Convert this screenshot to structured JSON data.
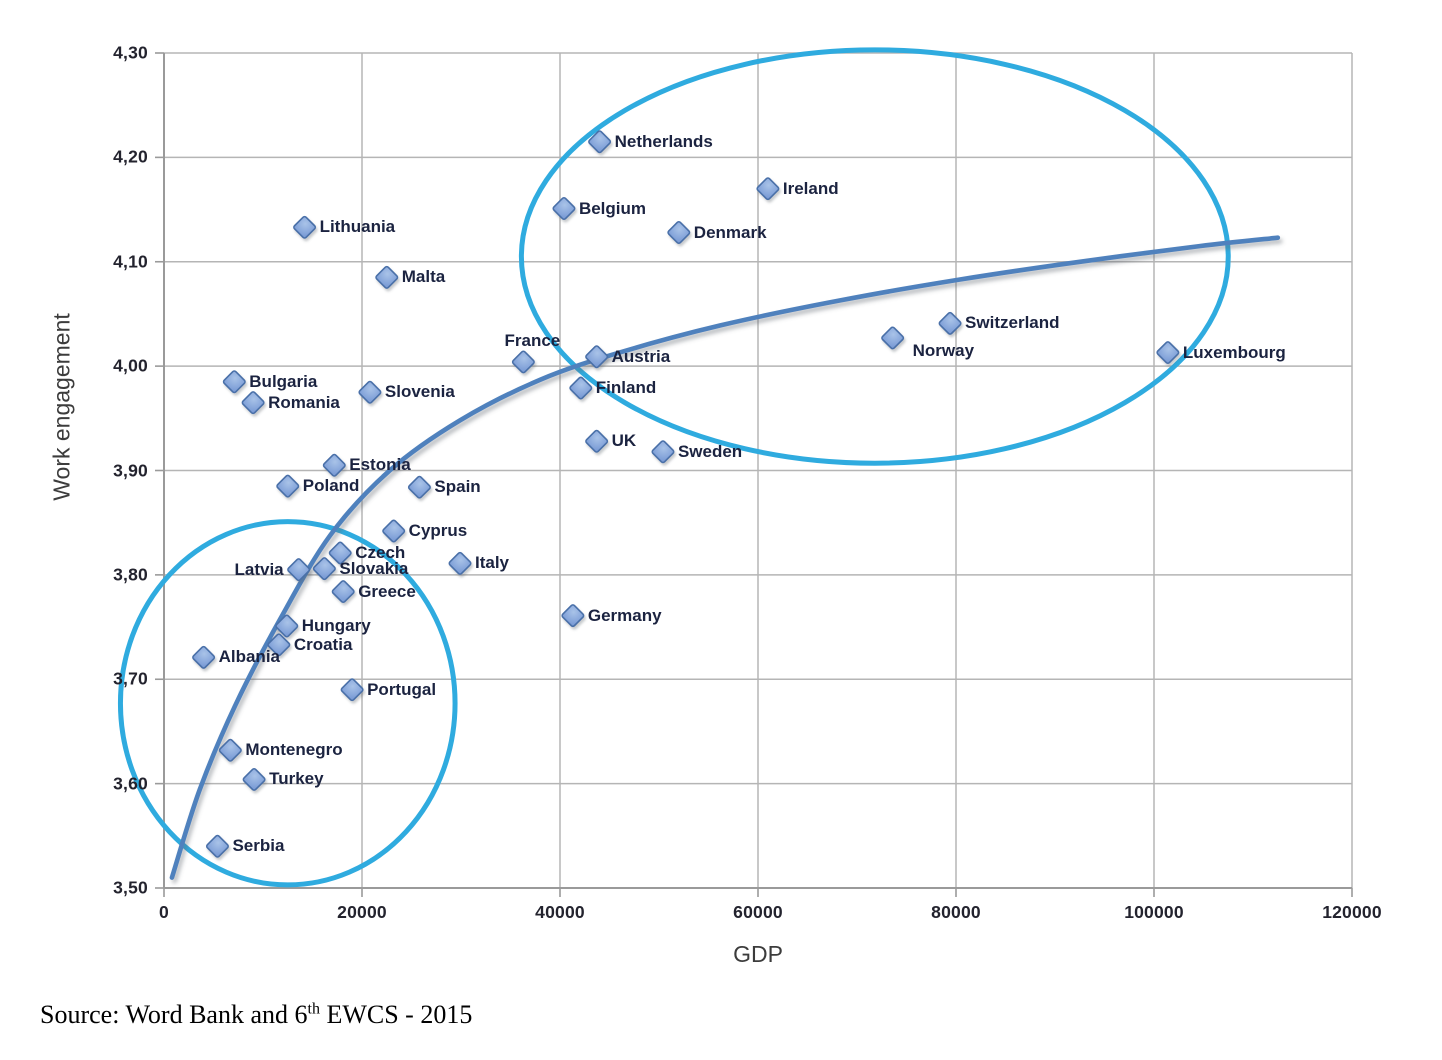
{
  "colors": {
    "marker_fill": "#7b9cd6",
    "marker_fill_light": "#a9c3e8",
    "marker_border": "#4a6fa8",
    "trend_line": "#4f81bd",
    "ellipse_stroke": "#2fabdf",
    "gridline": "#b5b5b5",
    "axis_line": "#9a9a9a",
    "point_label_text": "#1b2340",
    "tick_text": "#23232e"
  },
  "chart_data": {
    "type": "scatter",
    "title": "",
    "xlabel": "GDP",
    "ylabel": "Work engagement",
    "xlim": [
      0,
      120000
    ],
    "ylim": [
      3.5,
      4.3
    ],
    "grid": true,
    "legend": false,
    "x_ticks": {
      "values": [
        0,
        20000,
        40000,
        60000,
        80000,
        100000,
        120000
      ],
      "labels": [
        "0",
        "20000",
        "40000",
        "60000",
        "80000",
        "100000",
        "120000"
      ]
    },
    "y_ticks": {
      "values": [
        3.5,
        3.6,
        3.7,
        3.8,
        3.9,
        4.0,
        4.1,
        4.2,
        4.3
      ],
      "labels": [
        "3,50",
        "3,60",
        "3,70",
        "3,80",
        "3,90",
        "4,00",
        "4,10",
        "4,20",
        "4,30"
      ]
    },
    "points": [
      {
        "label": "Netherlands",
        "gdp": 44000,
        "engagement": 4.215,
        "label_side": "right"
      },
      {
        "label": "Ireland",
        "gdp": 61000,
        "engagement": 4.17,
        "label_side": "right"
      },
      {
        "label": "Belgium",
        "gdp": 40400,
        "engagement": 4.151,
        "label_side": "right"
      },
      {
        "label": "Denmark",
        "gdp": 52000,
        "engagement": 4.128,
        "label_side": "right"
      },
      {
        "label": "Lithuania",
        "gdp": 14200,
        "engagement": 4.133,
        "label_side": "right"
      },
      {
        "label": "Malta",
        "gdp": 22500,
        "engagement": 4.085,
        "label_side": "right"
      },
      {
        "label": "France",
        "gdp": 36300,
        "engagement": 4.004,
        "label_side": "above"
      },
      {
        "label": "Austria",
        "gdp": 43700,
        "engagement": 4.009,
        "label_side": "right"
      },
      {
        "label": "Finland",
        "gdp": 42100,
        "engagement": 3.979,
        "label_side": "right"
      },
      {
        "label": "UK",
        "gdp": 43700,
        "engagement": 3.928,
        "label_side": "right"
      },
      {
        "label": "Sweden",
        "gdp": 50400,
        "engagement": 3.918,
        "label_side": "right"
      },
      {
        "label": "Norway",
        "gdp": 73600,
        "engagement": 4.027,
        "label_side": "below-right"
      },
      {
        "label": "Switzerland",
        "gdp": 79400,
        "engagement": 4.041,
        "label_side": "right"
      },
      {
        "label": "Luxembourg",
        "gdp": 101400,
        "engagement": 4.013,
        "label_side": "right"
      },
      {
        "label": "Germany",
        "gdp": 41300,
        "engagement": 3.761,
        "label_side": "right"
      },
      {
        "label": "Italy",
        "gdp": 29900,
        "engagement": 3.811,
        "label_side": "right"
      },
      {
        "label": "Spain",
        "gdp": 25800,
        "engagement": 3.884,
        "label_side": "right"
      },
      {
        "label": "Cyprus",
        "gdp": 23200,
        "engagement": 3.842,
        "label_side": "right"
      },
      {
        "label": "Slovenia",
        "gdp": 20800,
        "engagement": 3.975,
        "label_side": "right"
      },
      {
        "label": "Estonia",
        "gdp": 17200,
        "engagement": 3.905,
        "label_side": "right"
      },
      {
        "label": "Czech",
        "gdp": 17800,
        "engagement": 3.821,
        "label_side": "right"
      },
      {
        "label": "Slovakia",
        "gdp": 16200,
        "engagement": 3.806,
        "label_side": "right"
      },
      {
        "label": "Latvia",
        "gdp": 13600,
        "engagement": 3.805,
        "label_side": "left"
      },
      {
        "label": "Greece",
        "gdp": 18100,
        "engagement": 3.784,
        "label_side": "right"
      },
      {
        "label": "Poland",
        "gdp": 12500,
        "engagement": 3.885,
        "label_side": "right"
      },
      {
        "label": "Hungary",
        "gdp": 12400,
        "engagement": 3.751,
        "label_side": "right"
      },
      {
        "label": "Croatia",
        "gdp": 11600,
        "engagement": 3.733,
        "label_side": "right"
      },
      {
        "label": "Albania",
        "gdp": 4000,
        "engagement": 3.721,
        "label_side": "right"
      },
      {
        "label": "Portugal",
        "gdp": 19000,
        "engagement": 3.69,
        "label_side": "right"
      },
      {
        "label": "Montenegro",
        "gdp": 6700,
        "engagement": 3.632,
        "label_side": "right"
      },
      {
        "label": "Turkey",
        "gdp": 9100,
        "engagement": 3.604,
        "label_side": "right"
      },
      {
        "label": "Serbia",
        "gdp": 5400,
        "engagement": 3.54,
        "label_side": "right"
      },
      {
        "label": "Bulgaria",
        "gdp": 7100,
        "engagement": 3.985,
        "label_side": "right"
      },
      {
        "label": "Romania",
        "gdp": 9000,
        "engagement": 3.965,
        "label_side": "right"
      }
    ],
    "trend_line": {
      "type": "logarithmic",
      "points": [
        [
          800,
          3.51
        ],
        [
          3600,
          3.594
        ],
        [
          7200,
          3.675
        ],
        [
          11700,
          3.757
        ],
        [
          16800,
          3.838
        ],
        [
          22800,
          3.9
        ],
        [
          29900,
          3.948
        ],
        [
          38000,
          3.987
        ],
        [
          46000,
          4.013
        ],
        [
          56200,
          4.039
        ],
        [
          68300,
          4.063
        ],
        [
          80400,
          4.083
        ],
        [
          92500,
          4.1
        ],
        [
          104600,
          4.115
        ],
        [
          112500,
          4.123
        ]
      ]
    },
    "annotations": {
      "ellipses": [
        {
          "name": "high-gdp-high-engagement-group",
          "cx": 71800,
          "cy": 4.105,
          "rx": 35700,
          "ry": 0.198
        },
        {
          "name": "low-gdp-low-engagement-group",
          "cx": 12500,
          "cy": 3.677,
          "rx": 16900,
          "ry": 0.174
        }
      ]
    }
  },
  "source": {
    "prefix": "Source: Word Bank and 6",
    "superscript": "th",
    "suffix": " EWCS - 2015"
  }
}
